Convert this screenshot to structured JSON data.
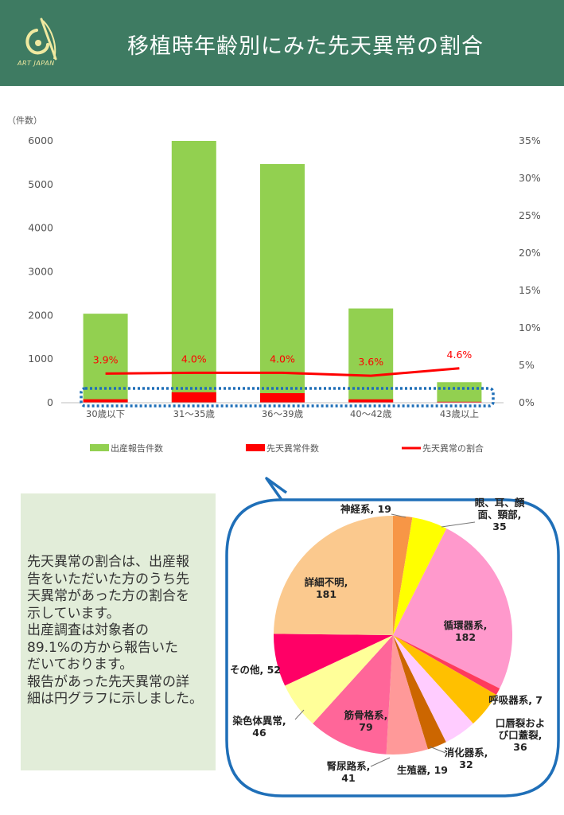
{
  "header": {
    "logo_text": "ART JAPAN",
    "title": "移植時年齢別にみた先天異常の割合",
    "background": "#3e7b62"
  },
  "note": {
    "lines": [
      "先天異常の割合は、出産報",
      "告をいただいた方のうち先",
      "天異常があった方の割合を",
      "示しています。",
      "出産調査は対象者の",
      "89.1%の方から報告いた",
      "だいております。",
      "報告があった先天異常の詳",
      "細は円グラフに示しました。"
    ]
  },
  "chart_data": [
    {
      "type": "bar",
      "ylabel": "（件数）",
      "categories": [
        "30歳以下",
        "31～35歳",
        "36～39歳",
        "40～42歳",
        "43歳以上"
      ],
      "ylim": [
        0,
        6000
      ],
      "yticks": [
        "0",
        "1000",
        "2000",
        "3000",
        "4000",
        "5000",
        "6000"
      ],
      "y2lim": [
        0,
        35
      ],
      "y2ticks": [
        "0%",
        "5%",
        "10%",
        "15%",
        "20%",
        "25%",
        "30%",
        "35%"
      ],
      "series": [
        {
          "name": "出産報告件数",
          "kind": "bar",
          "color": "#92d050",
          "values": [
            2040,
            6000,
            5470,
            2160,
            470
          ]
        },
        {
          "name": "先天異常件数",
          "kind": "bar",
          "color": "#ff0000",
          "values": [
            80,
            240,
            219,
            78,
            22
          ]
        },
        {
          "name": "先天異常の割合",
          "kind": "line",
          "axis": "right",
          "color": "#ff0000",
          "values": [
            3.9,
            4.0,
            4.0,
            3.6,
            4.6
          ],
          "labels": [
            "3.9%",
            "4.0%",
            "4.0%",
            "3.6%",
            "4.6%"
          ]
        }
      ],
      "legend_position": "bottom",
      "grid": false
    },
    {
      "type": "pie",
      "slices": [
        {
          "label": [
            "神経系, 19"
          ],
          "value": 19,
          "color": "#f79646"
        },
        {
          "label": [
            "眼、耳、顔",
            "面、頸部,",
            "35"
          ],
          "value": 35,
          "color": "#ffff00"
        },
        {
          "label": [
            "循環器系,",
            "182"
          ],
          "value": 182,
          "color": "#ff99cc"
        },
        {
          "label": [
            "呼吸器系, 7"
          ],
          "value": 7,
          "color": "#ff3b5c"
        },
        {
          "label": [
            "口唇裂およ",
            "び口蓋裂,",
            "36"
          ],
          "value": 36,
          "color": "#ffc000"
        },
        {
          "label": [
            "消化器系,",
            "32"
          ],
          "value": 32,
          "color": "#ffccff"
        },
        {
          "label": [
            "生殖器, 19"
          ],
          "value": 19,
          "color": "#cc6600"
        },
        {
          "label": [
            "腎尿路系,",
            "41"
          ],
          "value": 41,
          "color": "#ff9999"
        },
        {
          "label": [
            "筋骨格系,",
            "79"
          ],
          "value": 79,
          "color": "#ff6699"
        },
        {
          "label": [
            "染色体異常,",
            "46"
          ],
          "value": 46,
          "color": "#ffff99"
        },
        {
          "label": [
            "その他, 52"
          ],
          "value": 52,
          "color": "#ff0066"
        },
        {
          "label": [
            "詳細不明,",
            "181"
          ],
          "value": 181,
          "color": "#fbc98e"
        }
      ],
      "frame_color": "#1f6fb8"
    }
  ]
}
